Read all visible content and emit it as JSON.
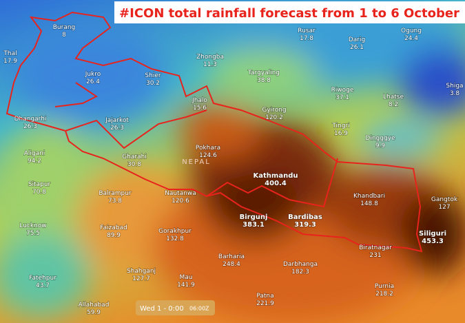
{
  "title": "#ICON total rainfall forecast from 1 to 6 October",
  "country_label": "NEPAL",
  "timestamp": {
    "label": "Wed 1 - 0:00",
    "time": "06:00Z"
  },
  "places": [
    {
      "name": "Burang",
      "value": 8
    },
    {
      "name": "Thal",
      "value": 17.9
    },
    {
      "name": "Rusar",
      "value": 17.8
    },
    {
      "name": "Darig",
      "value": 26.1
    },
    {
      "name": "Ogung",
      "value": 24.4
    },
    {
      "name": "Zhongba",
      "value": 11.3
    },
    {
      "name": "Jukro",
      "value": 26.4
    },
    {
      "name": "Shier",
      "value": 30.2
    },
    {
      "name": "Targyaling",
      "value": 38.8
    },
    {
      "name": "Riwoge",
      "value": 37.1
    },
    {
      "name": "Lhatse",
      "value": 8.2
    },
    {
      "name": "Shiga",
      "value": 3.8
    },
    {
      "name": "Jhalo",
      "value": 15.6
    },
    {
      "name": "Gyirong",
      "value": 120.2
    },
    {
      "name": "Dhangarhi",
      "value": 26.3
    },
    {
      "name": "Jajarkot",
      "value": 26.3
    },
    {
      "name": "Tingri",
      "value": 16.9
    },
    {
      "name": "Dingggye",
      "value": 9.9
    },
    {
      "name": "Aligani",
      "value": 94.2
    },
    {
      "name": "Pokhara",
      "value": 124.6
    },
    {
      "name": "Gharahi",
      "value": 30.8
    },
    {
      "name": "Kathmandu",
      "value": 400.4
    },
    {
      "name": "Sitapur",
      "value": 70.8
    },
    {
      "name": "Balrampur",
      "value": 73.8
    },
    {
      "name": "Nautanwa",
      "value": 120.6
    },
    {
      "name": "Khandbari",
      "value": 148.8
    },
    {
      "name": "Gangtok",
      "value": 127
    },
    {
      "name": "Lucknow",
      "value": 75.5
    },
    {
      "name": "Faizabad",
      "value": 89.9
    },
    {
      "name": "Gorakhpur",
      "value": 132.8
    },
    {
      "name": "Birgunj",
      "value": 383.1
    },
    {
      "name": "Bardibas",
      "value": 319.3
    },
    {
      "name": "Siliguri",
      "value": 453.3
    },
    {
      "name": "Biratnagar",
      "value": 231
    },
    {
      "name": "Barharia",
      "value": 248.4
    },
    {
      "name": "Darbhanga",
      "value": 182.3
    },
    {
      "name": "Fatehpur",
      "value": 43.7
    },
    {
      "name": "Shahganj",
      "value": 127.7
    },
    {
      "name": "Mau",
      "value": 141.9
    },
    {
      "name": "Purnia",
      "value": 218.2
    },
    {
      "name": "Patna",
      "value": 221.9
    },
    {
      "name": "Allahabad",
      "value": 59.9
    }
  ]
}
